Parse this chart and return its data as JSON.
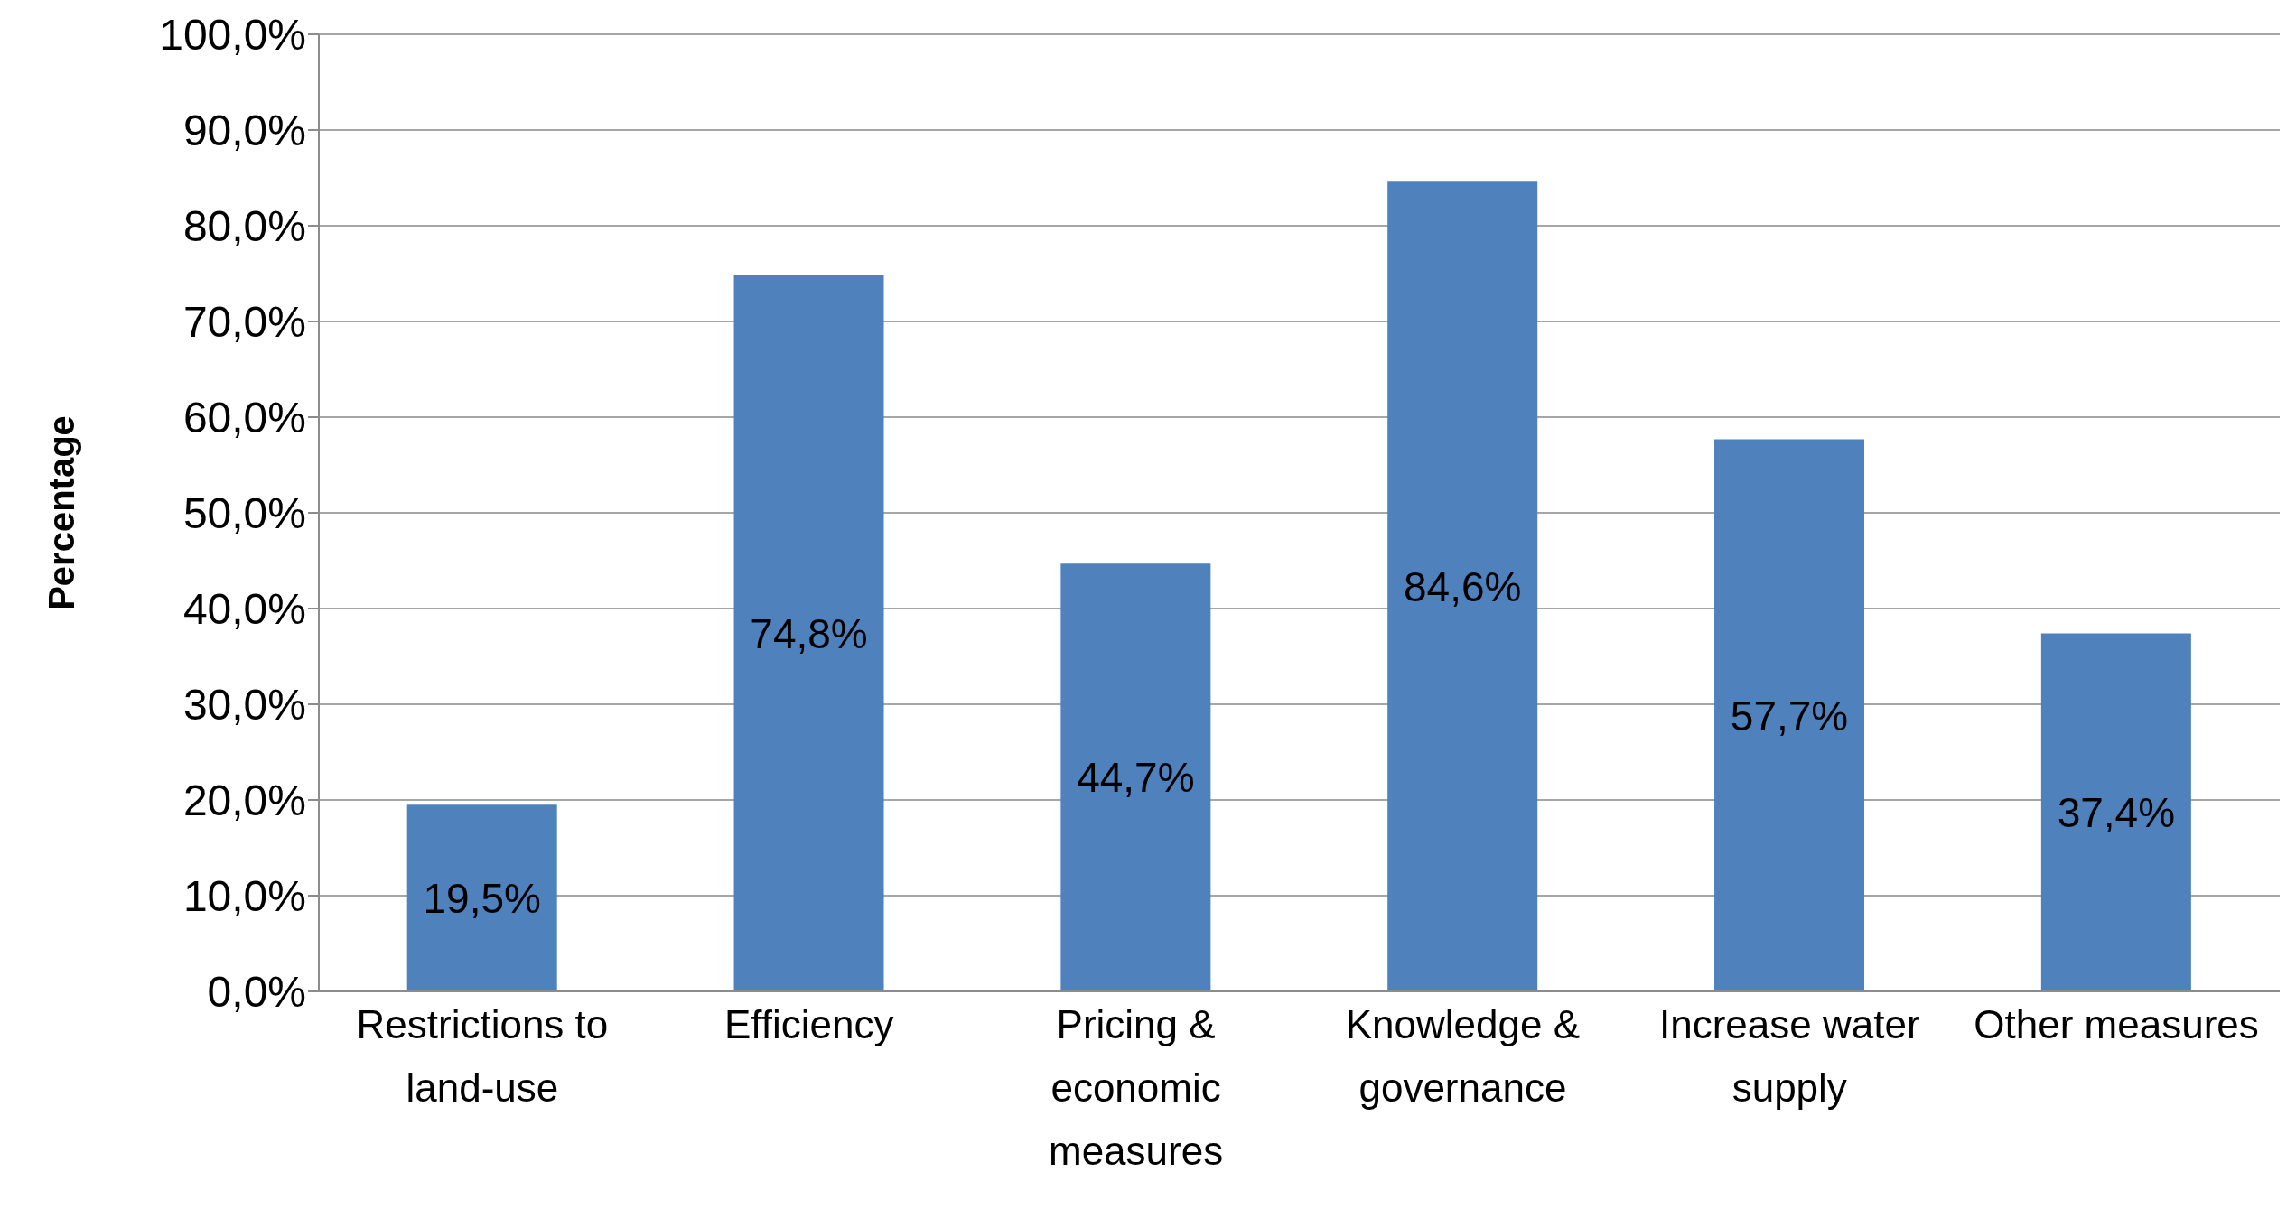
{
  "chart_data": {
    "type": "bar",
    "ylabel": "Percentage",
    "categories": [
      "Restrictions to land-use",
      "Efficiency",
      "Pricing & economic measures",
      "Knowledge & governance",
      "Increase water supply",
      "Other measures"
    ],
    "values": [
      19.5,
      74.8,
      44.7,
      84.6,
      57.7,
      37.4
    ],
    "value_labels": [
      "19,5%",
      "74,8%",
      "44,7%",
      "84,6%",
      "57,7%",
      "37,4%"
    ],
    "color": "#4f81bd",
    "ylim": [
      0,
      100
    ],
    "yticks": [
      {
        "value": 0,
        "label": "0,0%"
      },
      {
        "value": 10,
        "label": "10,0%"
      },
      {
        "value": 20,
        "label": "20,0%"
      },
      {
        "value": 30,
        "label": "30,0%"
      },
      {
        "value": 40,
        "label": "40,0%"
      },
      {
        "value": 50,
        "label": "50,0%"
      },
      {
        "value": 60,
        "label": "60,0%"
      },
      {
        "value": 70,
        "label": "70,0%"
      },
      {
        "value": 80,
        "label": "80,0%"
      },
      {
        "value": 90,
        "label": "90,0%"
      },
      {
        "value": 100,
        "label": "100,0%"
      }
    ],
    "grid": "y",
    "legend": false
  }
}
